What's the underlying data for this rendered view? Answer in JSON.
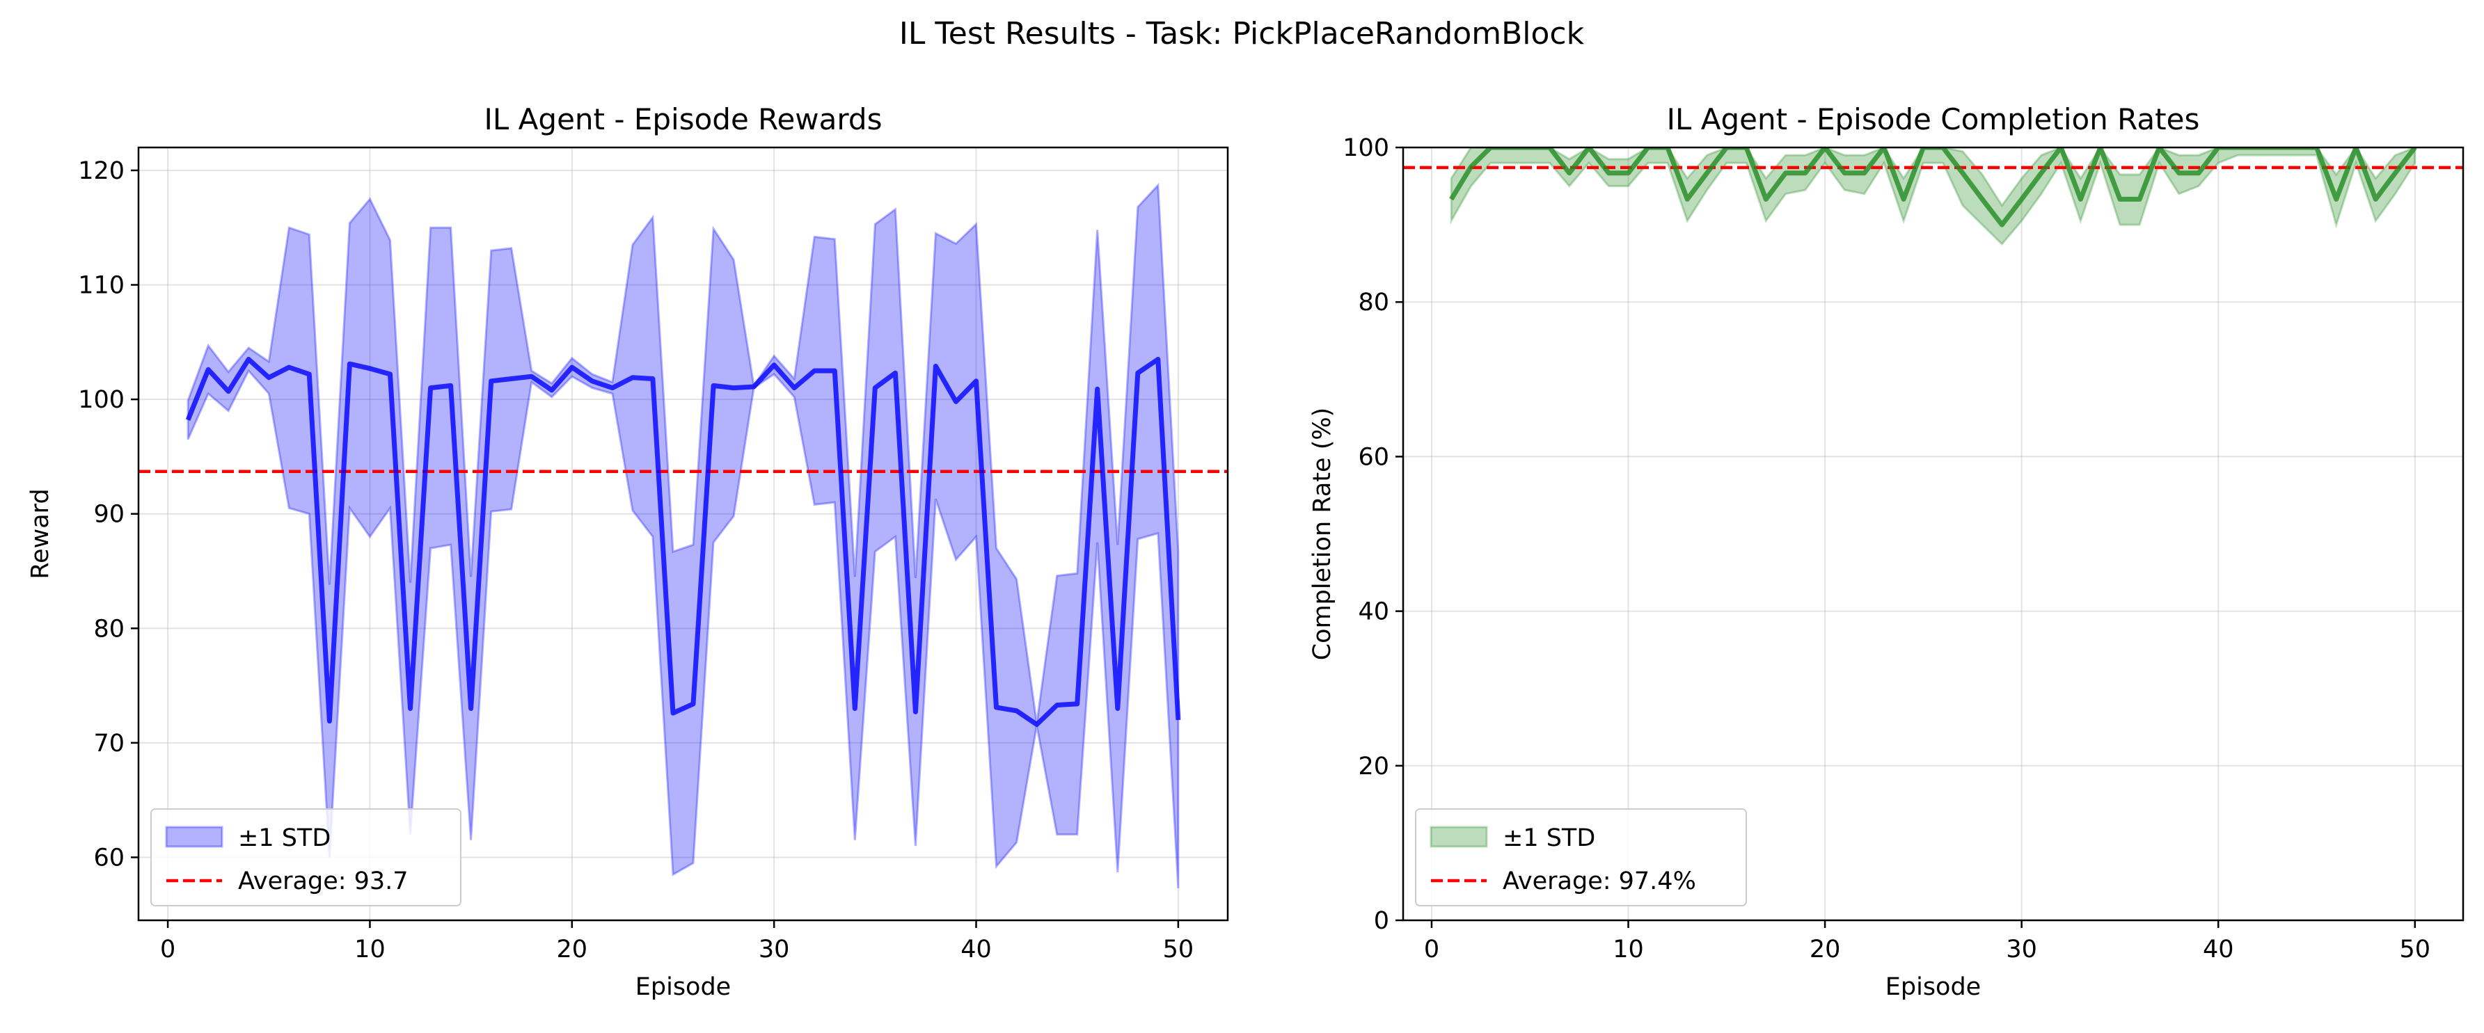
{
  "suptitle": "IL Test Results - Task: PickPlaceRandomBlock",
  "chart_data": [
    {
      "type": "line",
      "title": "IL Agent - Episode Rewards",
      "xlabel": "Episode",
      "ylabel": "Reward",
      "xlim": [
        -1.45,
        52.45
      ],
      "ylim": [
        54.5,
        122
      ],
      "xticks": [
        0,
        10,
        20,
        30,
        40,
        50
      ],
      "yticks": [
        60,
        70,
        80,
        90,
        100,
        110,
        120
      ],
      "grid": true,
      "legend_position": "lower-left",
      "line_color": "#0000ff",
      "band_color": "#0000ff",
      "series": [
        {
          "name": "Mean",
          "x": [
            1,
            2,
            3,
            4,
            5,
            6,
            7,
            8,
            9,
            10,
            11,
            12,
            13,
            14,
            15,
            16,
            17,
            18,
            19,
            20,
            21,
            22,
            23,
            24,
            25,
            26,
            27,
            28,
            29,
            30,
            31,
            32,
            33,
            34,
            35,
            36,
            37,
            38,
            39,
            40,
            41,
            42,
            43,
            44,
            45,
            46,
            47,
            48,
            49,
            50
          ],
          "values": [
            98.2,
            102.6,
            100.7,
            103.5,
            101.9,
            102.8,
            102.2,
            71.9,
            103.1,
            102.7,
            102.2,
            73,
            101,
            101.2,
            73,
            101.6,
            101.8,
            102,
            100.8,
            102.8,
            101.6,
            101,
            101.9,
            101.8,
            72.6,
            73.4,
            101.2,
            101,
            101.1,
            103,
            101,
            102.5,
            102.5,
            73,
            101,
            102.3,
            72.7,
            102.9,
            99.8,
            101.6,
            73.1,
            72.8,
            71.6,
            73.3,
            73.4,
            100.9,
            73,
            102.3,
            103.5,
            72
          ]
        },
        {
          "name": "±1 STD",
          "lower": [
            96.5,
            100.5,
            99,
            102.5,
            100.5,
            90.5,
            90,
            60,
            90.5,
            88,
            90.5,
            62,
            87,
            87.3,
            61.5,
            90.2,
            90.4,
            101.5,
            100.2,
            102,
            101,
            100.5,
            90.3,
            88,
            58.5,
            59.5,
            87.5,
            89.8,
            101,
            102.2,
            100.2,
            90.8,
            91,
            61.5,
            86.7,
            88,
            61,
            91.3,
            86,
            88,
            59.2,
            61.3,
            71.5,
            62,
            62,
            87.5,
            58.7,
            87.8,
            88.3,
            57.3
          ],
          "upper": [
            99.9,
            104.7,
            102.4,
            104.5,
            103.3,
            115,
            114.4,
            83.8,
            115.4,
            117.5,
            113.9,
            84,
            115,
            115,
            84.5,
            113,
            113.2,
            102.5,
            101.4,
            103.6,
            102.2,
            101.5,
            113.5,
            115.9,
            86.7,
            87.3,
            114.9,
            112.2,
            101.2,
            103.8,
            101.8,
            114.2,
            114,
            84.5,
            115.3,
            116.6,
            84.4,
            114.5,
            113.6,
            115.3,
            87,
            84.3,
            71.7,
            84.6,
            84.8,
            114.8,
            87.3,
            116.8,
            118.7,
            86.7
          ]
        },
        {
          "name": "Average: 93.7",
          "type": "hline",
          "value": 93.7,
          "color": "#ff0000",
          "style": "dashed"
        }
      ]
    },
    {
      "type": "line",
      "title": "IL Agent - Episode Completion Rates",
      "xlabel": "Episode",
      "ylabel": "Completion Rate (%)",
      "xlim": [
        -1.45,
        52.45
      ],
      "ylim": [
        0,
        100
      ],
      "xticks": [
        0,
        10,
        20,
        30,
        40,
        50
      ],
      "yticks": [
        0,
        20,
        40,
        60,
        80,
        100
      ],
      "grid": true,
      "legend_position": "lower-left",
      "line_color": "#228b22",
      "band_color": "#228b22",
      "series": [
        {
          "name": "Mean",
          "x": [
            1,
            2,
            3,
            4,
            5,
            6,
            7,
            8,
            9,
            10,
            11,
            12,
            13,
            14,
            15,
            16,
            17,
            18,
            19,
            20,
            21,
            22,
            23,
            24,
            25,
            26,
            27,
            28,
            29,
            30,
            31,
            32,
            33,
            34,
            35,
            36,
            37,
            38,
            39,
            40,
            41,
            42,
            43,
            44,
            45,
            46,
            47,
            48,
            49,
            50
          ],
          "values": [
            93.3,
            97.5,
            100,
            100,
            100,
            100,
            96.7,
            100,
            96.7,
            96.7,
            100,
            100,
            93.3,
            96.7,
            100,
            100,
            93.3,
            96.7,
            96.7,
            100,
            96.7,
            96.7,
            100,
            93.3,
            100,
            100,
            96.7,
            93.3,
            90,
            93.3,
            96.7,
            100,
            93.3,
            100,
            93.3,
            93.3,
            100,
            96.7,
            96.7,
            100,
            100,
            100,
            100,
            100,
            100,
            93.3,
            100,
            93.3,
            96.7,
            100
          ]
        },
        {
          "name": "±1 STD",
          "lower": [
            90.5,
            95,
            98,
            98,
            98,
            98,
            95,
            98,
            95,
            95,
            98,
            98,
            90.5,
            94.5,
            98,
            98,
            90.5,
            94,
            94.5,
            98,
            94.5,
            94,
            98,
            90.5,
            98,
            98,
            92.5,
            90,
            87.5,
            90.5,
            94,
            98,
            90.5,
            98,
            90,
            90,
            98,
            94,
            95,
            98,
            99,
            99,
            99,
            99,
            99,
            90,
            98,
            90.5,
            94,
            98
          ],
          "upper": [
            96,
            100,
            100,
            100,
            100,
            100,
            98.5,
            100,
            98.5,
            98.5,
            100,
            100,
            96,
            99,
            100,
            100,
            96,
            99,
            99,
            100,
            99,
            99,
            100,
            96,
            100,
            100,
            99.5,
            96.5,
            92.5,
            96,
            99,
            100,
            96,
            100,
            96.5,
            96.5,
            100,
            99,
            99,
            100,
            100,
            100,
            100,
            100,
            100,
            96.5,
            100,
            96,
            99,
            100
          ]
        },
        {
          "name": "Average: 97.4%",
          "type": "hline",
          "value": 97.4,
          "color": "#ff0000",
          "style": "dashed"
        }
      ]
    }
  ]
}
